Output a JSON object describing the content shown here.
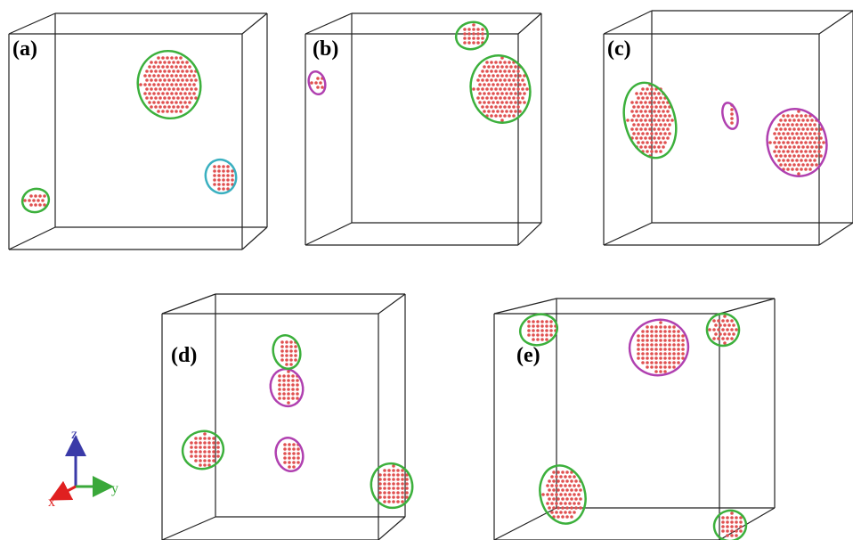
{
  "panels": [
    {
      "label": "(a)"
    },
    {
      "label": "(b)"
    },
    {
      "label": "(c)"
    },
    {
      "label": "(d)"
    },
    {
      "label": "(e)"
    }
  ],
  "axes": {
    "z": "z",
    "x": "x",
    "y": "y"
  }
}
